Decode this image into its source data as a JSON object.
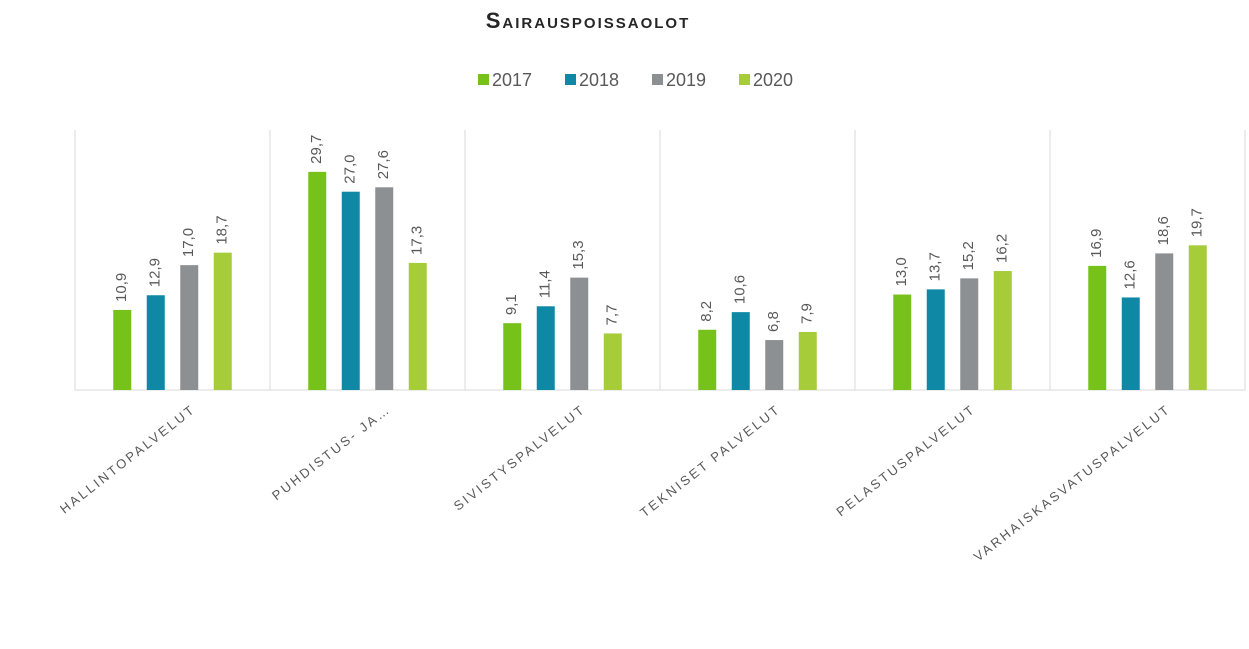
{
  "chart_data": {
    "type": "bar",
    "title": "Sairauspoissaolot",
    "categories": [
      "HALLINTOPALVELUT",
      "PUHDISTUS- JA…",
      "SIVISTYSPALVELUT",
      "TEKNISET PALVELUT",
      "PELASTUSPALVELUT",
      "VARHAISKASVATUSPALVELUT"
    ],
    "series": [
      {
        "name": "2017",
        "color": "#77c21a",
        "values": [
          10.9,
          29.7,
          9.1,
          8.2,
          13.0,
          16.9
        ],
        "value_labels": [
          "10,9",
          "29,7",
          "9,1",
          "8,2",
          "13,0",
          "16,9"
        ]
      },
      {
        "name": "2018",
        "color": "#0e88a5",
        "values": [
          12.9,
          27.0,
          11.4,
          10.6,
          13.7,
          12.6
        ],
        "value_labels": [
          "12,9",
          "27,0",
          "11,4",
          "10,6",
          "13,7",
          "12,6"
        ]
      },
      {
        "name": "2019",
        "color": "#8d9092",
        "values": [
          17.0,
          27.6,
          15.3,
          6.8,
          15.2,
          18.6
        ],
        "value_labels": [
          "17,0",
          "27,6",
          "15,3",
          "6,8",
          "15,2",
          "18,6"
        ]
      },
      {
        "name": "2020",
        "color": "#a6cc3a",
        "values": [
          18.7,
          17.3,
          7.7,
          7.9,
          16.2,
          19.7
        ],
        "value_labels": [
          "18,7",
          "17,3",
          "7,7",
          "7,9",
          "16,2",
          "19,7"
        ]
      }
    ],
    "ylim": [
      0,
      35.4
    ],
    "legend": "top"
  }
}
